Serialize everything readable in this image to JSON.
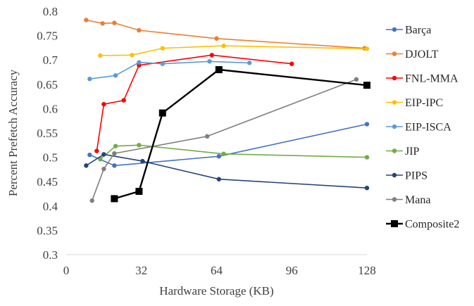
{
  "chart_data": {
    "type": "line",
    "title": "",
    "xlabel": "Hardware Storage (KB)",
    "ylabel": "Percent Prefetch Accuracy",
    "xlim": [
      0,
      128
    ],
    "ylim": [
      0.3,
      0.8
    ],
    "xticks": [
      0,
      32,
      64,
      96,
      128
    ],
    "xtick_labels": [
      "0",
      "32",
      "64",
      "96",
      "128"
    ],
    "yticks": [
      0.3,
      0.35,
      0.4,
      0.45,
      0.5,
      0.55,
      0.6,
      0.65,
      0.7,
      0.75,
      0.8
    ],
    "ytick_labels": [
      "0.3",
      "0.35",
      "0.4",
      "0.45",
      "0.5",
      "0.55",
      "0.6",
      "0.65",
      "0.7",
      "0.75",
      "0.8"
    ],
    "grid": false,
    "legend_position": "right",
    "series": [
      {
        "name": "Barça",
        "color": "#4472C4",
        "marker": "circle",
        "points": [
          [
            10,
            0.505
          ],
          [
            20.5,
            0.483
          ],
          [
            65,
            0.502
          ],
          [
            128,
            0.568
          ]
        ]
      },
      {
        "name": "DJOLT",
        "color": "#ED7D31",
        "marker": "circle",
        "points": [
          [
            8.5,
            0.782
          ],
          [
            15.5,
            0.775
          ],
          [
            20.5,
            0.776
          ],
          [
            31,
            0.761
          ],
          [
            64,
            0.744
          ],
          [
            127,
            0.724
          ]
        ]
      },
      {
        "name": "FNL-MMA",
        "color": "#FF0000",
        "marker": "circle",
        "points": [
          [
            13,
            0.513
          ],
          [
            16,
            0.609
          ],
          [
            24.5,
            0.617
          ],
          [
            31,
            0.689
          ],
          [
            62,
            0.71
          ],
          [
            96,
            0.692
          ]
        ]
      },
      {
        "name": "EIP-IPC",
        "color": "#FFC000",
        "marker": "circle",
        "points": [
          [
            14.5,
            0.709
          ],
          [
            28,
            0.71
          ],
          [
            41,
            0.724
          ],
          [
            67,
            0.729
          ],
          [
            128,
            0.723
          ]
        ]
      },
      {
        "name": "EIP-ISCA",
        "color": "#5B9BD5",
        "marker": "circle",
        "points": [
          [
            10,
            0.661
          ],
          [
            21,
            0.668
          ],
          [
            31,
            0.695
          ],
          [
            41,
            0.692
          ],
          [
            61,
            0.697
          ],
          [
            78,
            0.694
          ]
        ]
      },
      {
        "name": "JIP",
        "color": "#70AD47",
        "marker": "circle",
        "points": [
          [
            14.5,
            0.496
          ],
          [
            21,
            0.523
          ],
          [
            31,
            0.525
          ],
          [
            67,
            0.507
          ],
          [
            128,
            0.5
          ]
        ]
      },
      {
        "name": "PIPS",
        "color": "#264478",
        "marker": "circle",
        "points": [
          [
            8.5,
            0.483
          ],
          [
            16,
            0.506
          ],
          [
            32.5,
            0.492
          ],
          [
            65,
            0.455
          ],
          [
            128,
            0.437
          ]
        ]
      },
      {
        "name": "Mana",
        "color": "#7F7F7F",
        "marker": "circle",
        "points": [
          [
            11,
            0.411
          ],
          [
            16,
            0.476
          ],
          [
            20.5,
            0.508
          ],
          [
            60,
            0.543
          ],
          [
            123.5,
            0.66
          ]
        ]
      },
      {
        "name": "Composite2",
        "color": "#000000",
        "marker": "square",
        "points": [
          [
            20.5,
            0.415
          ],
          [
            31,
            0.43
          ],
          [
            41,
            0.591
          ],
          [
            65,
            0.68
          ],
          [
            128,
            0.648
          ]
        ]
      }
    ]
  }
}
